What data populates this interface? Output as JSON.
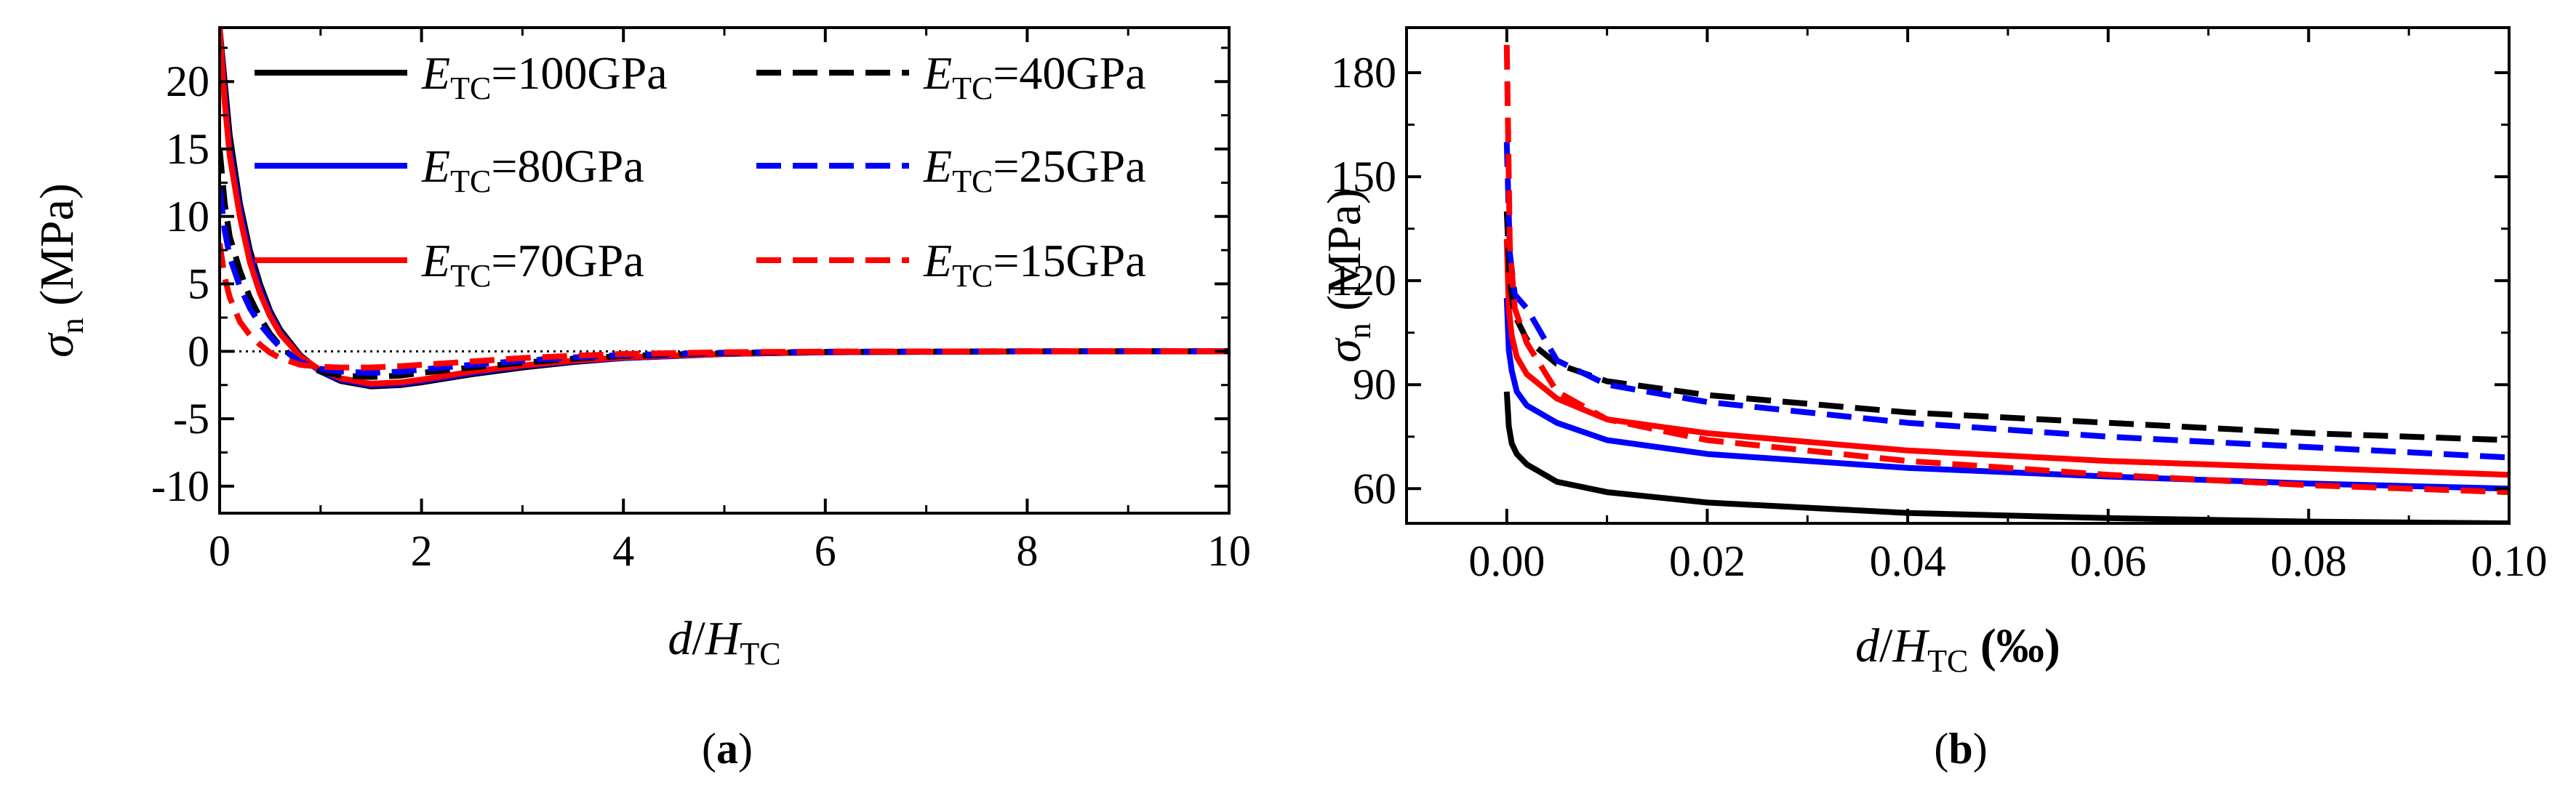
{
  "chart_data": [
    {
      "panel_label": "(a)",
      "panel_letter": "a",
      "type": "line",
      "xlabel": {
        "main": "d",
        "sep": "/H",
        "sub": "TC",
        "suffix": ""
      },
      "ylabel": {
        "main": "σ",
        "sub": "n",
        "suffix": " (MPa)"
      },
      "xlim": [
        0,
        10
      ],
      "ylim": [
        -12,
        24
      ],
      "xticks": [
        "0",
        "2",
        "4",
        "6",
        "8",
        "10"
      ],
      "xtick_values": [
        0,
        2,
        4,
        6,
        8,
        10
      ],
      "yticks": [
        "-10",
        "-5",
        "0",
        "5",
        "10",
        "15",
        "20"
      ],
      "ytick_values": [
        -10,
        -5,
        0,
        5,
        10,
        15,
        20
      ],
      "reference_line": {
        "y": 0,
        "style": "dotted"
      },
      "legend_prefix": {
        "main": "E",
        "sub": "TC"
      },
      "series": [
        {
          "name": "=100GPa",
          "color": "#000000",
          "dash": "solid",
          "x": [
            0,
            0.05,
            0.1,
            0.2,
            0.3,
            0.4,
            0.5,
            0.6,
            0.8,
            1.0,
            1.2,
            1.5,
            1.8,
            2.0,
            2.5,
            3.0,
            3.5,
            4.0,
            5.0,
            6.0,
            8.0,
            10.0
          ],
          "y": [
            24,
            20,
            16,
            11,
            7.5,
            5,
            3,
            1.6,
            -0.3,
            -1.5,
            -2.2,
            -2.6,
            -2.5,
            -2.3,
            -1.7,
            -1.2,
            -0.8,
            -0.5,
            -0.2,
            -0.07,
            -0.01,
            0
          ]
        },
        {
          "name": "=80GPa",
          "color": "#0000ff",
          "dash": "solid",
          "x": [
            0,
            0.05,
            0.1,
            0.2,
            0.3,
            0.4,
            0.5,
            0.6,
            0.8,
            1.0,
            1.2,
            1.5,
            1.8,
            2.0,
            2.5,
            3.0,
            3.5,
            4.0,
            5.0,
            6.0,
            8.0,
            10.0
          ],
          "y": [
            24,
            19,
            15,
            10.5,
            7,
            4.6,
            2.8,
            1.4,
            -0.4,
            -1.5,
            -2.1,
            -2.5,
            -2.4,
            -2.2,
            -1.6,
            -1.1,
            -0.75,
            -0.5,
            -0.2,
            -0.07,
            -0.01,
            0
          ]
        },
        {
          "name": "=70GPa",
          "color": "#ff0000",
          "dash": "solid",
          "x": [
            0,
            0.05,
            0.1,
            0.2,
            0.3,
            0.4,
            0.5,
            0.6,
            0.8,
            1.0,
            1.2,
            1.5,
            1.8,
            2.0,
            2.5,
            3.0,
            3.5,
            4.0,
            5.0,
            6.0,
            8.0,
            10.0
          ],
          "y": [
            24,
            18.5,
            14.5,
            10,
            6.6,
            4.3,
            2.6,
            1.3,
            -0.4,
            -1.4,
            -2.0,
            -2.4,
            -2.3,
            -2.1,
            -1.5,
            -1.05,
            -0.7,
            -0.45,
            -0.18,
            -0.06,
            -0.01,
            0
          ]
        },
        {
          "name": "=40GPa",
          "color": "#000000",
          "dash": "dashed",
          "x": [
            0,
            0.05,
            0.1,
            0.2,
            0.3,
            0.4,
            0.5,
            0.6,
            0.8,
            1.0,
            1.2,
            1.5,
            1.8,
            2.0,
            2.5,
            3.0,
            3.5,
            4.0,
            5.0,
            6.0,
            8.0,
            10.0
          ],
          "y": [
            15,
            11,
            8.5,
            6,
            4,
            2.5,
            1.3,
            0.4,
            -0.9,
            -1.5,
            -1.8,
            -1.9,
            -1.8,
            -1.6,
            -1.2,
            -0.85,
            -0.55,
            -0.35,
            -0.13,
            -0.04,
            0,
            0
          ]
        },
        {
          "name": "=25GPa",
          "color": "#0000ff",
          "dash": "dashed",
          "x": [
            0,
            0.05,
            0.1,
            0.2,
            0.3,
            0.4,
            0.5,
            0.6,
            0.8,
            1.0,
            1.2,
            1.5,
            1.8,
            2.0,
            2.5,
            3.0,
            3.5,
            4.0,
            5.0,
            6.0,
            8.0,
            10.0
          ],
          "y": [
            12,
            9,
            7,
            4.8,
            3.2,
            2,
            1.1,
            0.3,
            -0.8,
            -1.3,
            -1.5,
            -1.6,
            -1.5,
            -1.35,
            -1.0,
            -0.7,
            -0.45,
            -0.28,
            -0.1,
            -0.03,
            0,
            0
          ]
        },
        {
          "name": "=15GPa",
          "color": "#ff0000",
          "dash": "dashed",
          "x": [
            0,
            0.05,
            0.1,
            0.2,
            0.3,
            0.4,
            0.5,
            0.6,
            0.8,
            1.0,
            1.2,
            1.5,
            1.8,
            2.0,
            2.5,
            3.0,
            3.5,
            4.0,
            5.0,
            6.0,
            8.0,
            10.0
          ],
          "y": [
            8,
            5.5,
            4,
            2.2,
            1.2,
            0.5,
            -0.1,
            -0.5,
            -1.0,
            -1.15,
            -1.2,
            -1.2,
            -1.1,
            -1.0,
            -0.75,
            -0.5,
            -0.33,
            -0.2,
            -0.07,
            -0.02,
            0,
            0
          ]
        }
      ]
    },
    {
      "panel_label": "(b)",
      "panel_letter": "b",
      "type": "line",
      "xlabel": {
        "main": "d",
        "sep": "/H",
        "sub": "TC",
        "suffix": " (‰)"
      },
      "ylabel": {
        "main": "σ",
        "sub": "n",
        "suffix": " (MPa)"
      },
      "xlim": [
        -0.01,
        0.1
      ],
      "ylim": [
        50,
        193
      ],
      "xticks": [
        "0.00",
        "0.02",
        "0.04",
        "0.06",
        "0.08",
        "0.10"
      ],
      "xtick_values": [
        0,
        0.02,
        0.04,
        0.06,
        0.08,
        0.1
      ],
      "yticks": [
        "60",
        "90",
        "120",
        "150",
        "180"
      ],
      "ytick_values": [
        60,
        90,
        120,
        150,
        180
      ],
      "series": [
        {
          "name": "=100GPa",
          "color": "#000000",
          "dash": "solid",
          "x": [
            0,
            0.0002,
            0.0005,
            0.001,
            0.002,
            0.005,
            0.01,
            0.02,
            0.04,
            0.06,
            0.08,
            0.1
          ],
          "y": [
            88,
            78,
            73,
            70,
            67,
            62,
            59,
            56,
            53,
            51.5,
            50.5,
            50
          ]
        },
        {
          "name": "=80GPa",
          "color": "#0000ff",
          "dash": "solid",
          "x": [
            0,
            0.0002,
            0.0005,
            0.001,
            0.002,
            0.005,
            0.01,
            0.02,
            0.04,
            0.06,
            0.08,
            0.1
          ],
          "y": [
            115,
            100,
            94,
            88,
            84,
            79,
            74,
            70,
            66,
            63.5,
            61.5,
            60
          ]
        },
        {
          "name": "=70GPa",
          "color": "#ff0000",
          "dash": "solid",
          "x": [
            0,
            0.0002,
            0.0005,
            0.001,
            0.002,
            0.005,
            0.01,
            0.02,
            0.04,
            0.06,
            0.08,
            0.1
          ],
          "y": [
            132,
            112,
            104,
            98,
            93,
            86,
            80,
            76,
            71,
            68,
            66,
            64
          ]
        },
        {
          "name": "=40GPa",
          "color": "#000000",
          "dash": "dashed",
          "x": [
            0,
            0.0003,
            0.0008,
            0.002,
            0.005,
            0.01,
            0.02,
            0.04,
            0.06,
            0.08,
            0.1
          ],
          "y": [
            140,
            120,
            110,
            103,
            96,
            91,
            87,
            82,
            79,
            76,
            74
          ]
        },
        {
          "name": "=25GPa",
          "color": "#0000ff",
          "dash": "dashed",
          "x": [
            0,
            0.0003,
            0.0008,
            0.002,
            0.005,
            0.01,
            0.02,
            0.04,
            0.06,
            0.08,
            0.1
          ],
          "y": [
            160,
            128,
            116,
            112,
            97,
            90,
            85,
            79,
            75,
            72,
            69
          ]
        },
        {
          "name": "=15GPa",
          "color": "#ff0000",
          "dash": "dashed",
          "x": [
            0,
            0.0003,
            0.0008,
            0.002,
            0.005,
            0.01,
            0.02,
            0.04,
            0.06,
            0.08,
            0.1
          ],
          "y": [
            188,
            130,
            112,
            102,
            88,
            80,
            74,
            68,
            64,
            61,
            59
          ]
        }
      ]
    }
  ]
}
